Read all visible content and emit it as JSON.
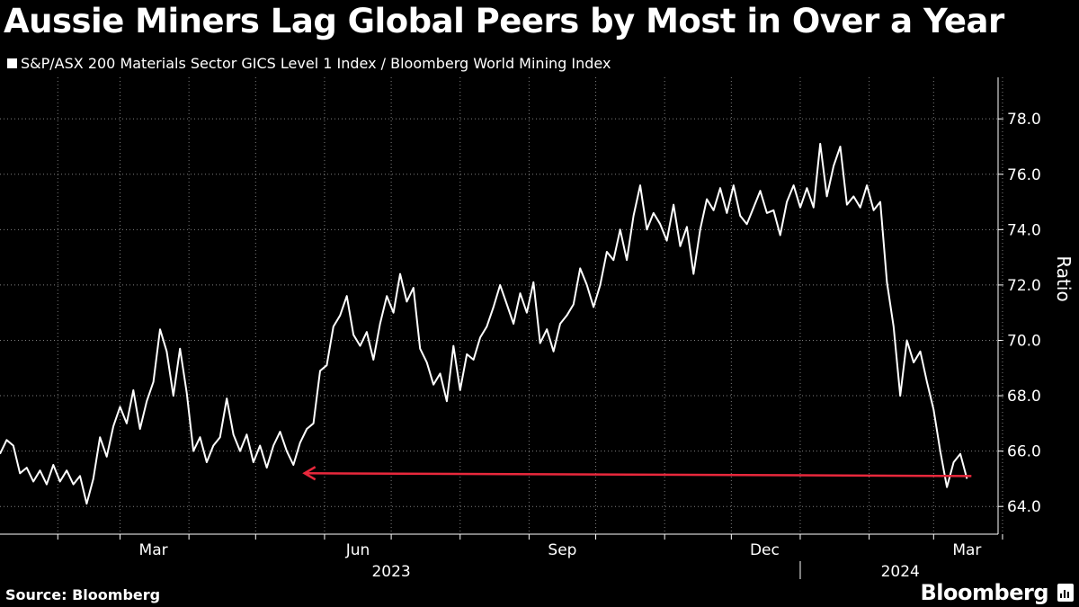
{
  "title": "Aussie Miners Lag Global Peers by Most in Over a Year",
  "legend_label": "S&P/ASX 200 Materials Sector GICS Level 1 Index / Bloomberg World Mining Index",
  "source": "Source: Bloomberg",
  "brand": "Bloomberg",
  "colors": {
    "background": "#000000",
    "line": "#ffffff",
    "grid": "#7f7f7f",
    "arrow": "#e8283c"
  },
  "chart_data": {
    "type": "line",
    "title": "Aussie Miners Lag Global Peers by Most in Over a Year",
    "xlabel": "",
    "ylabel": "Ratio",
    "ylim": [
      63,
      79.5
    ],
    "xlim": [
      "2023-01-06",
      "2024-03-30"
    ],
    "y_ticks": [
      "64.0",
      "66.0",
      "68.0",
      "70.0",
      "72.0",
      "74.0",
      "76.0",
      "78.0"
    ],
    "x_tick_labels": [
      {
        "label": "Mar",
        "date": "2023-03-01"
      },
      {
        "label": "Jun",
        "date": "2023-06-01"
      },
      {
        "label": "Sep",
        "date": "2023-09-01"
      },
      {
        "label": "Dec",
        "date": "2023-12-01"
      },
      {
        "label": "Mar",
        "date": "2024-03-01"
      }
    ],
    "x_minor_dates": [
      "2023-02-01",
      "2023-04-01",
      "2023-05-01",
      "2023-07-01",
      "2023-08-01",
      "2023-10-01",
      "2023-11-01",
      "2024-01-01",
      "2024-02-01",
      "2024-04-01"
    ],
    "years": [
      {
        "label": "2023",
        "date": "2023-07-01"
      },
      {
        "label": "2024",
        "date": "2024-02-15"
      }
    ],
    "grid": true,
    "legend": "top-left",
    "series": [
      {
        "name": "S&P/ASX 200 Materials Sector GICS Level 1 Index / Bloomberg World Mining Index",
        "points": [
          [
            "2023-01-06",
            65.9
          ],
          [
            "2023-01-09",
            66.4
          ],
          [
            "2023-01-12",
            66.2
          ],
          [
            "2023-01-15",
            65.2
          ],
          [
            "2023-01-18",
            65.4
          ],
          [
            "2023-01-21",
            64.9
          ],
          [
            "2023-01-24",
            65.3
          ],
          [
            "2023-01-27",
            64.8
          ],
          [
            "2023-01-30",
            65.5
          ],
          [
            "2023-02-02",
            64.9
          ],
          [
            "2023-02-05",
            65.3
          ],
          [
            "2023-02-08",
            64.8
          ],
          [
            "2023-02-11",
            65.1
          ],
          [
            "2023-02-14",
            64.1
          ],
          [
            "2023-02-17",
            65.0
          ],
          [
            "2023-02-20",
            66.5
          ],
          [
            "2023-02-23",
            65.8
          ],
          [
            "2023-02-26",
            66.9
          ],
          [
            "2023-03-01",
            67.6
          ],
          [
            "2023-03-04",
            67.0
          ],
          [
            "2023-03-07",
            68.2
          ],
          [
            "2023-03-10",
            66.8
          ],
          [
            "2023-03-13",
            67.8
          ],
          [
            "2023-03-16",
            68.5
          ],
          [
            "2023-03-19",
            70.4
          ],
          [
            "2023-03-22",
            69.6
          ],
          [
            "2023-03-25",
            68.0
          ],
          [
            "2023-03-28",
            69.7
          ],
          [
            "2023-03-31",
            68.1
          ],
          [
            "2023-04-03",
            66.0
          ],
          [
            "2023-04-06",
            66.5
          ],
          [
            "2023-04-09",
            65.6
          ],
          [
            "2023-04-12",
            66.2
          ],
          [
            "2023-04-15",
            66.5
          ],
          [
            "2023-04-18",
            67.9
          ],
          [
            "2023-04-21",
            66.6
          ],
          [
            "2023-04-24",
            66.0
          ],
          [
            "2023-04-27",
            66.6
          ],
          [
            "2023-04-30",
            65.6
          ],
          [
            "2023-05-03",
            66.2
          ],
          [
            "2023-05-06",
            65.4
          ],
          [
            "2023-05-09",
            66.2
          ],
          [
            "2023-05-12",
            66.7
          ],
          [
            "2023-05-15",
            66.0
          ],
          [
            "2023-05-18",
            65.5
          ],
          [
            "2023-05-21",
            66.3
          ],
          [
            "2023-05-24",
            66.8
          ],
          [
            "2023-05-27",
            67.0
          ],
          [
            "2023-05-30",
            68.9
          ],
          [
            "2023-06-02",
            69.1
          ],
          [
            "2023-06-05",
            70.5
          ],
          [
            "2023-06-08",
            70.9
          ],
          [
            "2023-06-11",
            71.6
          ],
          [
            "2023-06-14",
            70.2
          ],
          [
            "2023-06-17",
            69.8
          ],
          [
            "2023-06-20",
            70.3
          ],
          [
            "2023-06-23",
            69.3
          ],
          [
            "2023-06-26",
            70.6
          ],
          [
            "2023-06-29",
            71.6
          ],
          [
            "2023-07-02",
            71.0
          ],
          [
            "2023-07-05",
            72.4
          ],
          [
            "2023-07-08",
            71.4
          ],
          [
            "2023-07-11",
            71.9
          ],
          [
            "2023-07-14",
            69.7
          ],
          [
            "2023-07-17",
            69.2
          ],
          [
            "2023-07-20",
            68.4
          ],
          [
            "2023-07-23",
            68.8
          ],
          [
            "2023-07-26",
            67.8
          ],
          [
            "2023-07-29",
            69.8
          ],
          [
            "2023-08-01",
            68.2
          ],
          [
            "2023-08-04",
            69.5
          ],
          [
            "2023-08-07",
            69.3
          ],
          [
            "2023-08-10",
            70.1
          ],
          [
            "2023-08-13",
            70.5
          ],
          [
            "2023-08-16",
            71.2
          ],
          [
            "2023-08-19",
            72.0
          ],
          [
            "2023-08-22",
            71.3
          ],
          [
            "2023-08-25",
            70.6
          ],
          [
            "2023-08-28",
            71.7
          ],
          [
            "2023-08-31",
            71.0
          ],
          [
            "2023-09-03",
            72.1
          ],
          [
            "2023-09-06",
            69.9
          ],
          [
            "2023-09-09",
            70.4
          ],
          [
            "2023-09-12",
            69.6
          ],
          [
            "2023-09-15",
            70.6
          ],
          [
            "2023-09-18",
            70.9
          ],
          [
            "2023-09-21",
            71.3
          ],
          [
            "2023-09-24",
            72.6
          ],
          [
            "2023-09-27",
            72.0
          ],
          [
            "2023-09-30",
            71.2
          ],
          [
            "2023-10-03",
            72.0
          ],
          [
            "2023-10-06",
            73.2
          ],
          [
            "2023-10-09",
            72.9
          ],
          [
            "2023-10-12",
            74.0
          ],
          [
            "2023-10-15",
            72.9
          ],
          [
            "2023-10-18",
            74.5
          ],
          [
            "2023-10-21",
            75.6
          ],
          [
            "2023-10-24",
            74.0
          ],
          [
            "2023-10-27",
            74.6
          ],
          [
            "2023-10-30",
            74.2
          ],
          [
            "2023-11-02",
            73.6
          ],
          [
            "2023-11-05",
            74.9
          ],
          [
            "2023-11-08",
            73.4
          ],
          [
            "2023-11-11",
            74.1
          ],
          [
            "2023-11-14",
            72.4
          ],
          [
            "2023-11-17",
            74.0
          ],
          [
            "2023-11-20",
            75.1
          ],
          [
            "2023-11-23",
            74.7
          ],
          [
            "2023-11-26",
            75.5
          ],
          [
            "2023-11-29",
            74.6
          ],
          [
            "2023-12-02",
            75.6
          ],
          [
            "2023-12-05",
            74.5
          ],
          [
            "2023-12-08",
            74.2
          ],
          [
            "2023-12-11",
            74.8
          ],
          [
            "2023-12-14",
            75.4
          ],
          [
            "2023-12-17",
            74.6
          ],
          [
            "2023-12-20",
            74.7
          ],
          [
            "2023-12-23",
            73.8
          ],
          [
            "2023-12-26",
            75.0
          ],
          [
            "2023-12-29",
            75.6
          ],
          [
            "2024-01-01",
            74.8
          ],
          [
            "2024-01-04",
            75.5
          ],
          [
            "2024-01-07",
            74.8
          ],
          [
            "2024-01-10",
            77.1
          ],
          [
            "2024-01-13",
            75.2
          ],
          [
            "2024-01-16",
            76.3
          ],
          [
            "2024-01-19",
            77.0
          ],
          [
            "2024-01-22",
            74.9
          ],
          [
            "2024-01-25",
            75.2
          ],
          [
            "2024-01-28",
            74.8
          ],
          [
            "2024-01-31",
            75.6
          ],
          [
            "2024-02-03",
            74.7
          ],
          [
            "2024-02-06",
            75.0
          ],
          [
            "2024-02-09",
            72.1
          ],
          [
            "2024-02-12",
            70.5
          ],
          [
            "2024-02-15",
            68.0
          ],
          [
            "2024-02-18",
            70.0
          ],
          [
            "2024-02-21",
            69.2
          ],
          [
            "2024-02-24",
            69.6
          ],
          [
            "2024-02-27",
            68.5
          ],
          [
            "2024-03-01",
            67.5
          ],
          [
            "2024-03-04",
            66.0
          ],
          [
            "2024-03-07",
            64.7
          ],
          [
            "2024-03-10",
            65.6
          ],
          [
            "2024-03-13",
            65.9
          ],
          [
            "2024-03-16",
            65.0
          ]
        ]
      }
    ],
    "annotations": [
      {
        "type": "arrow",
        "from": [
          "2024-03-18",
          65.1
        ],
        "to": [
          "2023-05-23",
          65.2
        ]
      }
    ]
  }
}
